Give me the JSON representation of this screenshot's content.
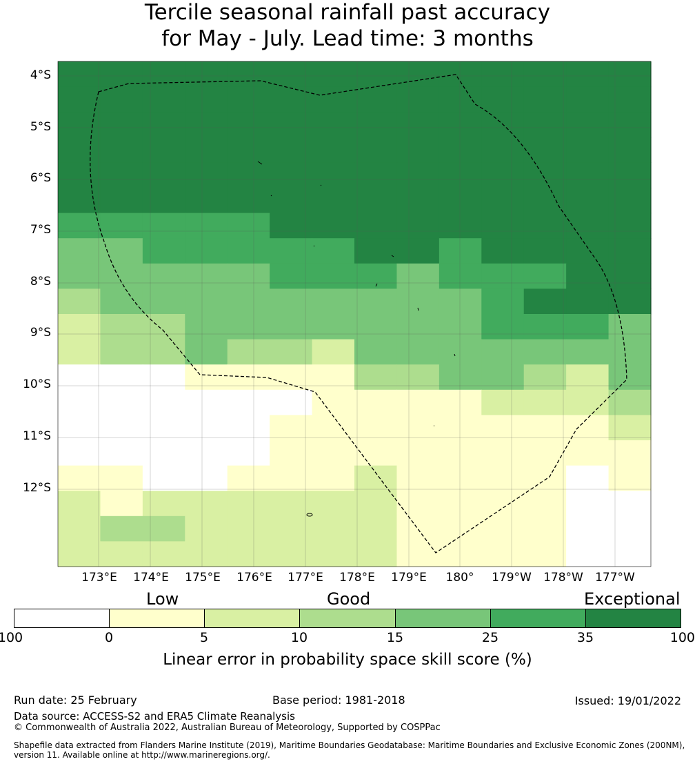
{
  "title": {
    "line1": "Tercile seasonal rainfall past accuracy",
    "line2": "for May - July. Lead time: 3 months"
  },
  "map": {
    "lat_labels": [
      "4°S",
      "5°S",
      "6°S",
      "7°S",
      "8°S",
      "9°S",
      "10°S",
      "11°S",
      "12°S"
    ],
    "lon_labels": [
      "173°E",
      "174°E",
      "175°E",
      "176°E",
      "177°E",
      "178°E",
      "179°E",
      "180°",
      "179°W",
      "178°W",
      "177°W"
    ],
    "class_colors": [
      "#ffffff",
      "#ffffcc",
      "#d9f0a3",
      "#addd8e",
      "#78c679",
      "#41ab5d",
      "#238443"
    ],
    "grid_classes": [
      [
        6,
        6,
        6,
        6,
        6,
        6,
        6,
        6,
        6,
        6,
        6,
        6,
        6,
        6
      ],
      [
        6,
        6,
        6,
        6,
        6,
        6,
        6,
        6,
        6,
        6,
        6,
        6,
        6,
        6
      ],
      [
        6,
        6,
        6,
        6,
        6,
        6,
        6,
        6,
        6,
        6,
        6,
        6,
        6,
        6
      ],
      [
        6,
        6,
        6,
        6,
        6,
        6,
        6,
        6,
        6,
        6,
        6,
        6,
        6,
        6
      ],
      [
        6,
        6,
        6,
        6,
        6,
        6,
        6,
        6,
        6,
        6,
        6,
        6,
        6,
        6
      ],
      [
        6,
        6,
        6,
        6,
        6,
        6,
        6,
        6,
        6,
        6,
        6,
        6,
        6,
        6
      ],
      [
        5,
        5,
        5,
        5,
        5,
        6,
        6,
        6,
        6,
        6,
        6,
        6,
        6,
        6
      ],
      [
        4,
        4,
        5,
        5,
        5,
        5,
        5,
        6,
        6,
        5,
        6,
        6,
        6,
        6
      ],
      [
        4,
        4,
        4,
        4,
        4,
        5,
        5,
        5,
        4,
        5,
        5,
        5,
        6,
        6
      ],
      [
        3,
        4,
        4,
        4,
        4,
        4,
        4,
        4,
        4,
        4,
        5,
        6,
        6,
        6
      ],
      [
        2,
        3,
        3,
        4,
        4,
        4,
        4,
        4,
        4,
        4,
        5,
        5,
        5,
        4
      ],
      [
        2,
        3,
        3,
        4,
        3,
        3,
        2,
        4,
        4,
        4,
        4,
        4,
        4,
        4
      ],
      [
        0,
        0,
        0,
        1,
        1,
        1,
        1,
        3,
        3,
        4,
        4,
        3,
        2,
        4
      ],
      [
        0,
        0,
        0,
        0,
        0,
        0,
        1,
        1,
        1,
        1,
        2,
        2,
        2,
        3
      ],
      [
        0,
        0,
        0,
        0,
        0,
        1,
        1,
        1,
        1,
        1,
        1,
        1,
        1,
        2
      ],
      [
        0,
        0,
        0,
        0,
        0,
        1,
        1,
        1,
        1,
        1,
        1,
        1,
        1,
        1
      ],
      [
        1,
        1,
        0,
        0,
        1,
        1,
        1,
        2,
        1,
        1,
        1,
        1,
        0,
        1
      ],
      [
        2,
        1,
        2,
        2,
        2,
        2,
        2,
        2,
        1,
        1,
        1,
        1,
        0,
        0
      ],
      [
        2,
        3,
        3,
        2,
        2,
        2,
        2,
        2,
        1,
        1,
        1,
        1,
        0,
        0
      ],
      [
        2,
        2,
        2,
        2,
        2,
        2,
        2,
        2,
        1,
        1,
        1,
        1,
        0,
        0
      ]
    ]
  },
  "colorbar": {
    "categories": [
      "Low",
      "Good",
      "Exceptional"
    ],
    "ticks": [
      "-100",
      "0",
      "5",
      "10",
      "15",
      "25",
      "35",
      "100"
    ],
    "label": "Linear error in probability space skill score (%)"
  },
  "footer": {
    "run_date": "Run date: 25 February",
    "base_period": "Base period: 1981-2018",
    "issued": "Issued: 19/01/2022",
    "data_source": "Data source: ACCESS-S2 and ERA5 Climate Reanalysis",
    "copyright": "© Commonwealth of Australia 2022, Australian Bureau of Meteorology, Supported by COSPPac",
    "shapefile_line1": "Shapefile data extracted from Flanders Marine Institute (2019), Maritime Boundaries Geodatabase: Maritime Boundaries and Exclusive Economic Zones (200NM),",
    "shapefile_line2": "version 11. Available online at http://www.marineregions.org/."
  }
}
